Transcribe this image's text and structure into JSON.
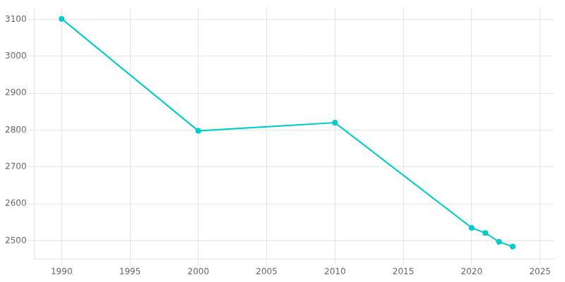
{
  "chart_data": {
    "type": "line",
    "x": [
      1990,
      2000,
      2010,
      2020,
      2021,
      2022,
      2023
    ],
    "values": [
      3102,
      2798,
      2820,
      2535,
      2521,
      2497,
      2484
    ],
    "color": "#00CCCC",
    "marker": "circle",
    "xlim": [
      1988,
      2026
    ],
    "ylim": [
      2450,
      3130
    ],
    "xticks": [
      1990,
      1995,
      2000,
      2005,
      2010,
      2015,
      2020,
      2025
    ],
    "yticks": [
      2500,
      2600,
      2700,
      2800,
      2900,
      3000,
      3100
    ],
    "grid": true
  }
}
